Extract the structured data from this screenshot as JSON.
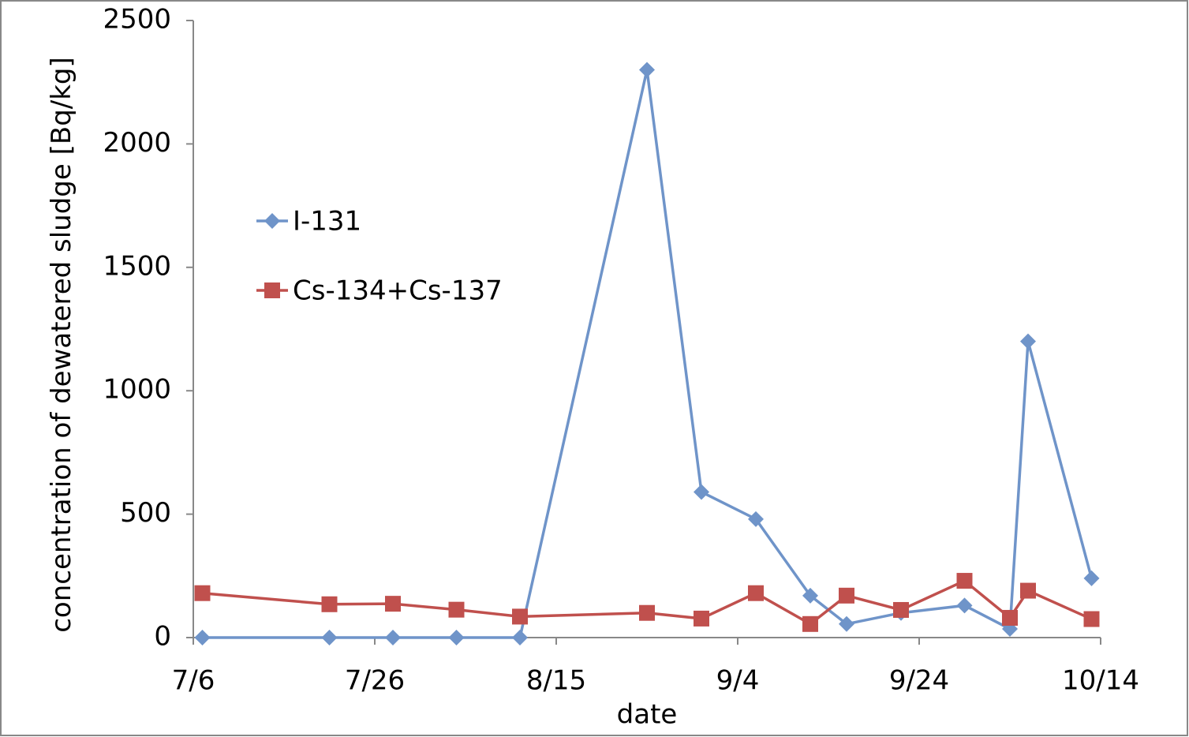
{
  "chart_data": {
    "type": "line",
    "x_label": "date",
    "y_label": "concentration of dewatered sludge [Bq/kg]",
    "x": [
      "7/7",
      "7/21",
      "7/28",
      "8/4",
      "8/11",
      "8/25",
      "8/31",
      "9/6",
      "9/12",
      "9/16",
      "9/22",
      "9/29",
      "10/4",
      "10/6",
      "10/13"
    ],
    "series": [
      {
        "name": "I-131",
        "color": "#6f94c9",
        "marker": "diamond",
        "values": [
          0,
          0,
          0,
          0,
          0,
          2300,
          590,
          480,
          170,
          55,
          100,
          130,
          35,
          1200,
          240
        ]
      },
      {
        "name": "Cs-134+Cs-137",
        "color": "#c0504d",
        "marker": "square",
        "values": [
          180,
          135,
          137,
          113,
          85,
          100,
          77,
          180,
          55,
          170,
          112,
          230,
          80,
          190,
          75
        ]
      }
    ],
    "xlim": [
      "7/6",
      "10/14"
    ],
    "xticks": [
      "7/6",
      "7/26",
      "8/15",
      "9/4",
      "9/24",
      "10/14"
    ],
    "ylim": [
      0,
      2500
    ],
    "yticks": [
      0,
      500,
      1000,
      1500,
      2000,
      2500
    ],
    "grid": false,
    "legend": "upper left"
  }
}
